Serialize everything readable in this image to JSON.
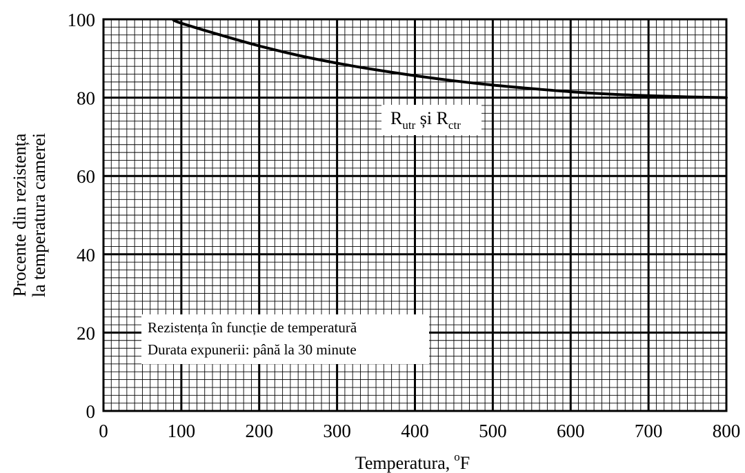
{
  "chart_data": {
    "type": "line",
    "xlabel": "Temperatura,",
    "xlabel_unit_sup": "o",
    "xlabel_unit": "F",
    "ylabel_line1": "Procente din rezistența",
    "ylabel_line2": "la temperatura camerei",
    "xlim": [
      0,
      800
    ],
    "ylim": [
      0,
      100
    ],
    "x_ticks": [
      "0",
      "100",
      "200",
      "300",
      "400",
      "500",
      "600",
      "700",
      "800"
    ],
    "y_ticks": [
      "0",
      "20",
      "40",
      "60",
      "80",
      "100"
    ],
    "grid": true,
    "series": [
      {
        "name_parts": [
          "R",
          "utr",
          " și R",
          "ctr"
        ],
        "x": [
          90,
          100,
          150,
          200,
          250,
          300,
          350,
          400,
          450,
          500,
          550,
          600,
          650,
          700,
          750,
          800
        ],
        "y": [
          99.8,
          99.0,
          96.0,
          93.2,
          90.8,
          88.8,
          87.1,
          85.6,
          84.3,
          83.2,
          82.3,
          81.5,
          80.9,
          80.5,
          80.2,
          80.0
        ]
      }
    ],
    "annotation_lines": [
      "Rezistența în funcție de temperatură",
      "Durata expunerii: până la 30 minute"
    ]
  }
}
